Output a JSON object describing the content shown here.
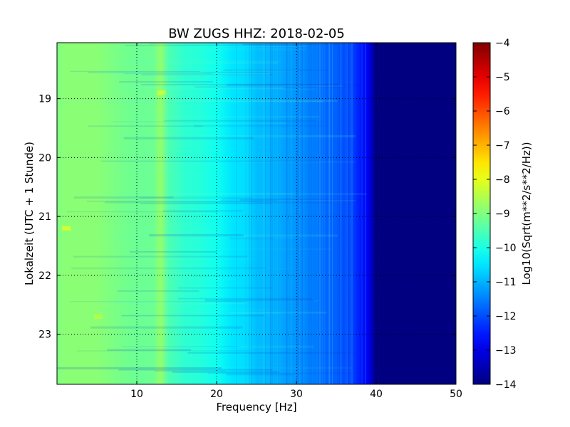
{
  "chart_data": {
    "type": "heatmap",
    "title": "BW ZUGS HHZ: 2018-02-05",
    "xlabel": "Frequency [Hz]",
    "ylabel": "Lokalzeit (UTC + 1 Stunde)",
    "xlim": [
      0,
      50
    ],
    "ylim": [
      18.05,
      23.85
    ],
    "y_inverted": true,
    "xticks": [
      10,
      20,
      30,
      40,
      50
    ],
    "yticks": [
      19,
      20,
      21,
      22,
      23
    ],
    "grid": true,
    "colormap": "jet",
    "colorbar": {
      "label": "Log10(Sqrt(m**2/s**2/Hz))",
      "range": [
        -14,
        -4
      ],
      "ticks": [
        -4,
        -5,
        -6,
        -7,
        -8,
        -9,
        -10,
        -11,
        -12,
        -13,
        -14
      ]
    },
    "frequency_profile_hz": [
      0,
      1,
      3,
      5,
      8,
      10,
      12,
      13,
      14,
      16,
      18,
      20,
      22,
      24,
      25,
      26,
      28,
      30,
      32,
      34,
      35,
      36,
      37,
      38,
      39,
      40,
      45,
      50
    ],
    "frequency_profile_log10": [
      -9.0,
      -8.9,
      -8.9,
      -8.9,
      -9.1,
      -9.2,
      -9.2,
      -8.8,
      -9.5,
      -9.8,
      -9.9,
      -10.1,
      -10.5,
      -10.6,
      -10.9,
      -10.9,
      -11.1,
      -11.3,
      -11.5,
      -11.8,
      -11.8,
      -12.0,
      -12.1,
      -12.5,
      -12.9,
      -14.0,
      -14.0,
      -14.0
    ],
    "features": [
      {
        "x_hz": 1.0,
        "time": 21.2,
        "value": -8.0
      },
      {
        "x_hz": 5.0,
        "time": 22.7,
        "value": -8.4
      },
      {
        "x_hz": 12.9,
        "time": 18.9,
        "value": -8.2
      }
    ]
  }
}
